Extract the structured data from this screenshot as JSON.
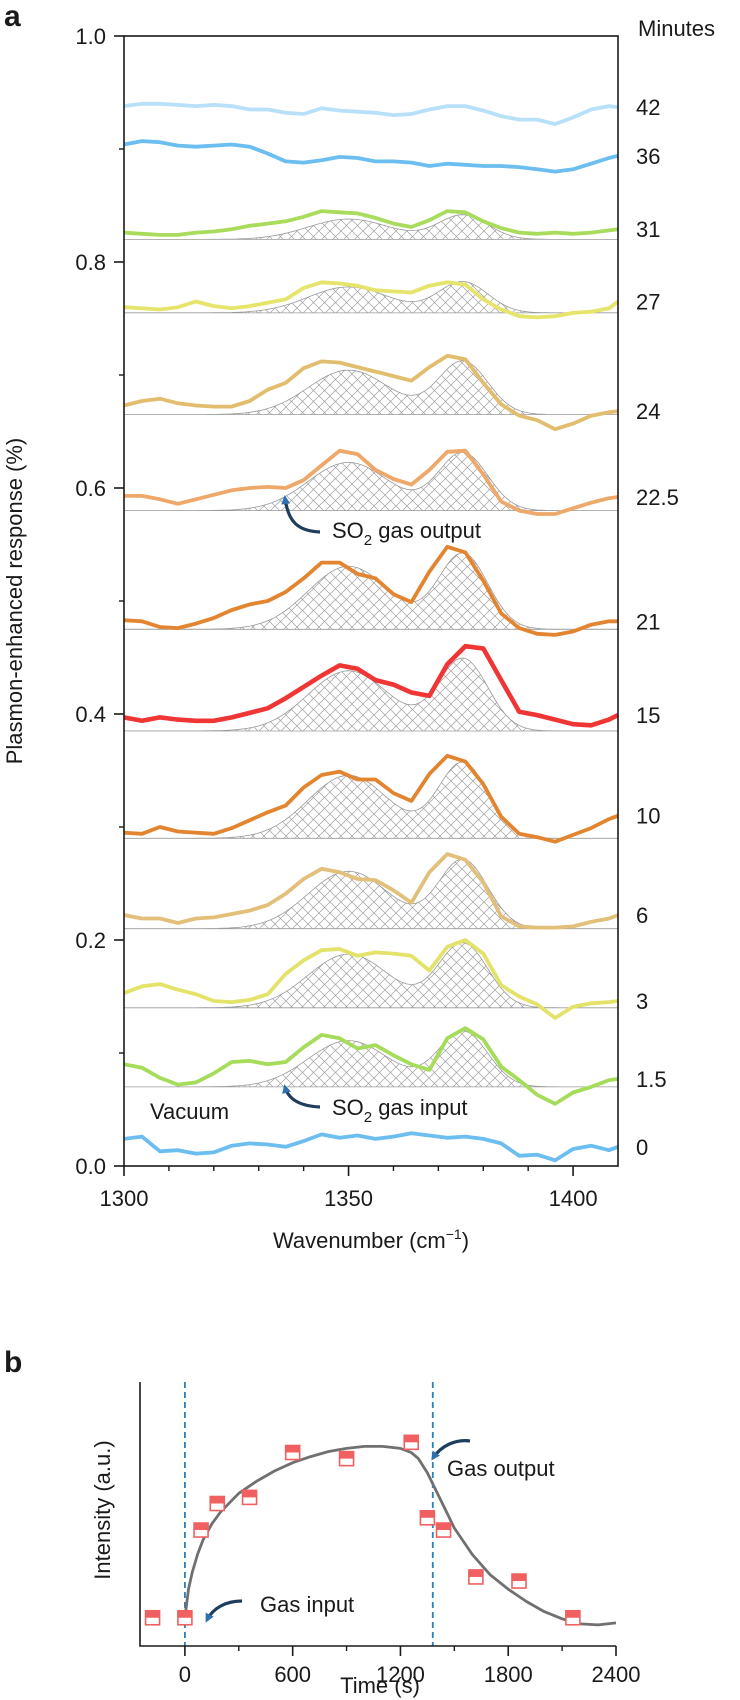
{
  "chart_data": [
    {
      "panel_label": "a",
      "type": "line",
      "xlabel_main": "Wavenumber (cm",
      "xlabel_sup": "−1",
      "xlabel_end": ")",
      "ylabel": "Plasmon-enhanced response (%)",
      "xlim": [
        1300,
        1410
      ],
      "ylim": [
        0.0,
        1.0
      ],
      "xticks": [
        1300,
        1350,
        1400
      ],
      "xtick_labels": [
        "1300",
        "1350",
        "1400"
      ],
      "xticks_minor": [
        1310,
        1320,
        1330,
        1340,
        1360,
        1370,
        1380,
        1390
      ],
      "yticks": [
        0.0,
        0.2,
        0.4,
        0.6,
        0.8,
        1.0
      ],
      "ytick_labels": [
        "0.0",
        "0.2",
        "0.4",
        "0.6",
        "0.8",
        "1.0"
      ],
      "minutes_header": "Minutes",
      "vacuum_label": "Vacuum",
      "annotations": [
        {
          "id": "input",
          "pre": "SO",
          "sub": "2",
          "post": " gas input",
          "arrow_to": [
            1337,
            0.088
          ]
        },
        {
          "id": "output",
          "pre": "SO",
          "sub": "2",
          "post": " gas output",
          "arrow_to": [
            1337,
            0.592
          ]
        }
      ],
      "x": [
        1300,
        1304,
        1308,
        1312,
        1316,
        1320,
        1324,
        1328,
        1332,
        1336,
        1340,
        1344,
        1348,
        1352,
        1356,
        1360,
        1364,
        1368,
        1372,
        1376,
        1380,
        1384,
        1388,
        1392,
        1396,
        1400,
        1404,
        1408,
        1410
      ],
      "series": [
        {
          "name": "0",
          "label": "0",
          "color": "#6cbdf0",
          "baseline": 0.02,
          "amp": 0.0,
          "has_peaks": false,
          "values": [
            0.024,
            0.026,
            0.013,
            0.014,
            0.011,
            0.012,
            0.018,
            0.02,
            0.019,
            0.017,
            0.022,
            0.028,
            0.025,
            0.027,
            0.024,
            0.026,
            0.029,
            0.027,
            0.025,
            0.026,
            0.024,
            0.02,
            0.009,
            0.01,
            0.005,
            0.015,
            0.018,
            0.014,
            0.017
          ]
        },
        {
          "name": "1.5",
          "label": "1.5",
          "color": "#a5dc5a",
          "baseline": 0.07,
          "amp": 0.05,
          "has_peaks": true,
          "values": [
            0.09,
            0.087,
            0.078,
            0.072,
            0.074,
            0.082,
            0.092,
            0.093,
            0.09,
            0.092,
            0.105,
            0.116,
            0.113,
            0.104,
            0.107,
            0.098,
            0.09,
            0.085,
            0.113,
            0.122,
            0.112,
            0.088,
            0.076,
            0.063,
            0.055,
            0.065,
            0.07,
            0.076,
            0.077
          ]
        },
        {
          "name": "3",
          "label": "3",
          "color": "#e3e36a",
          "baseline": 0.14,
          "amp": 0.058,
          "has_peaks": true,
          "values": [
            0.153,
            0.159,
            0.161,
            0.156,
            0.152,
            0.146,
            0.145,
            0.147,
            0.152,
            0.17,
            0.182,
            0.191,
            0.192,
            0.186,
            0.189,
            0.188,
            0.186,
            0.173,
            0.194,
            0.2,
            0.188,
            0.16,
            0.15,
            0.143,
            0.131,
            0.141,
            0.144,
            0.145,
            0.146
          ]
        },
        {
          "name": "6",
          "label": "6",
          "color": "#e2c07a",
          "baseline": 0.21,
          "amp": 0.062,
          "has_peaks": true,
          "values": [
            0.222,
            0.219,
            0.219,
            0.215,
            0.219,
            0.22,
            0.223,
            0.226,
            0.231,
            0.241,
            0.254,
            0.263,
            0.26,
            0.254,
            0.253,
            0.244,
            0.233,
            0.26,
            0.276,
            0.271,
            0.251,
            0.221,
            0.212,
            0.211,
            0.211,
            0.212,
            0.216,
            0.219,
            0.222
          ]
        },
        {
          "name": "10",
          "label": "10",
          "color": "#e38530",
          "baseline": 0.29,
          "amp": 0.068,
          "has_peaks": true,
          "values": [
            0.295,
            0.294,
            0.3,
            0.296,
            0.295,
            0.294,
            0.299,
            0.306,
            0.313,
            0.319,
            0.335,
            0.346,
            0.349,
            0.342,
            0.342,
            0.33,
            0.323,
            0.347,
            0.363,
            0.358,
            0.338,
            0.309,
            0.294,
            0.291,
            0.287,
            0.293,
            0.299,
            0.307,
            0.31
          ]
        },
        {
          "name": "15",
          "label": "15",
          "color": "#f03535",
          "baseline": 0.385,
          "amp": 0.065,
          "has_peaks": true,
          "values": [
            0.397,
            0.394,
            0.397,
            0.395,
            0.394,
            0.394,
            0.397,
            0.401,
            0.405,
            0.414,
            0.424,
            0.434,
            0.443,
            0.44,
            0.43,
            0.426,
            0.419,
            0.416,
            0.444,
            0.46,
            0.458,
            0.43,
            0.402,
            0.399,
            0.395,
            0.391,
            0.39,
            0.395,
            0.399
          ]
        },
        {
          "name": "21",
          "label": "21",
          "color": "#e38530",
          "baseline": 0.475,
          "amp": 0.068,
          "has_peaks": true,
          "values": [
            0.483,
            0.482,
            0.477,
            0.476,
            0.48,
            0.485,
            0.492,
            0.497,
            0.5,
            0.508,
            0.52,
            0.534,
            0.534,
            0.524,
            0.52,
            0.506,
            0.499,
            0.526,
            0.548,
            0.543,
            0.518,
            0.489,
            0.476,
            0.471,
            0.47,
            0.473,
            0.479,
            0.482,
            0.482
          ]
        },
        {
          "name": "22.5",
          "label": "22.5",
          "color": "#eea86a",
          "baseline": 0.58,
          "amp": 0.052,
          "has_peaks": true,
          "values": [
            0.593,
            0.593,
            0.59,
            0.586,
            0.59,
            0.594,
            0.598,
            0.6,
            0.601,
            0.6,
            0.607,
            0.62,
            0.633,
            0.63,
            0.616,
            0.608,
            0.603,
            0.616,
            0.632,
            0.633,
            0.612,
            0.588,
            0.58,
            0.577,
            0.577,
            0.582,
            0.587,
            0.591,
            0.592
          ]
        },
        {
          "name": "24",
          "label": "24",
          "color": "#e3bd6e",
          "baseline": 0.665,
          "amp": 0.048,
          "has_peaks": true,
          "values": [
            0.673,
            0.677,
            0.679,
            0.675,
            0.673,
            0.672,
            0.672,
            0.677,
            0.687,
            0.693,
            0.706,
            0.712,
            0.711,
            0.707,
            0.703,
            0.699,
            0.695,
            0.707,
            0.717,
            0.714,
            0.693,
            0.674,
            0.664,
            0.66,
            0.652,
            0.657,
            0.664,
            0.667,
            0.668
          ]
        },
        {
          "name": "27",
          "label": "27",
          "color": "#e6e46a",
          "baseline": 0.755,
          "amp": 0.028,
          "has_peaks": true,
          "values": [
            0.76,
            0.759,
            0.758,
            0.76,
            0.765,
            0.761,
            0.759,
            0.761,
            0.764,
            0.767,
            0.777,
            0.782,
            0.781,
            0.779,
            0.775,
            0.774,
            0.773,
            0.779,
            0.782,
            0.78,
            0.767,
            0.758,
            0.752,
            0.751,
            0.752,
            0.755,
            0.756,
            0.759,
            0.765
          ]
        },
        {
          "name": "31",
          "label": "31",
          "color": "#a9dc5c",
          "baseline": 0.82,
          "amp": 0.022,
          "has_peaks": true,
          "values": [
            0.826,
            0.825,
            0.824,
            0.824,
            0.826,
            0.827,
            0.829,
            0.832,
            0.834,
            0.836,
            0.84,
            0.845,
            0.844,
            0.843,
            0.839,
            0.834,
            0.831,
            0.837,
            0.845,
            0.844,
            0.836,
            0.83,
            0.826,
            0.825,
            0.826,
            0.825,
            0.826,
            0.828,
            0.829
          ]
        },
        {
          "name": "36",
          "label": "36",
          "color": "#6cbdf0",
          "baseline": 0.89,
          "amp": 0.0,
          "has_peaks": false,
          "values": [
            0.904,
            0.907,
            0.906,
            0.903,
            0.902,
            0.903,
            0.904,
            0.902,
            0.896,
            0.889,
            0.888,
            0.89,
            0.893,
            0.892,
            0.889,
            0.889,
            0.888,
            0.885,
            0.887,
            0.886,
            0.885,
            0.885,
            0.884,
            0.882,
            0.88,
            0.882,
            0.887,
            0.892,
            0.894
          ]
        },
        {
          "name": "42",
          "label": "42",
          "color": "#b8e0f8",
          "baseline": 0.93,
          "amp": 0.0,
          "has_peaks": false,
          "values": [
            0.938,
            0.94,
            0.94,
            0.939,
            0.938,
            0.939,
            0.938,
            0.935,
            0.935,
            0.932,
            0.931,
            0.936,
            0.934,
            0.933,
            0.932,
            0.93,
            0.931,
            0.935,
            0.938,
            0.938,
            0.934,
            0.929,
            0.926,
            0.926,
            0.922,
            0.928,
            0.935,
            0.938,
            0.937
          ]
        }
      ]
    },
    {
      "panel_label": "b",
      "type": "scatter",
      "xlabel": "Time (s)",
      "ylabel": "Intensity (a.u.)",
      "xlim": [
        -250,
        2400
      ],
      "ylim": [
        0,
        1
      ],
      "xticks": [
        0,
        600,
        1200,
        1800,
        2400
      ],
      "xtick_labels": [
        "0",
        "600",
        "1200",
        "1800",
        "2400"
      ],
      "markers": {
        "color": "#f06060"
      },
      "points": [
        {
          "x": -180,
          "y": 0.06
        },
        {
          "x": 0,
          "y": 0.06
        },
        {
          "x": 90,
          "y": 0.49
        },
        {
          "x": 180,
          "y": 0.62
        },
        {
          "x": 360,
          "y": 0.65
        },
        {
          "x": 600,
          "y": 0.87
        },
        {
          "x": 900,
          "y": 0.84
        },
        {
          "x": 1260,
          "y": 0.92
        },
        {
          "x": 1350,
          "y": 0.55
        },
        {
          "x": 1440,
          "y": 0.49
        },
        {
          "x": 1620,
          "y": 0.26
        },
        {
          "x": 1860,
          "y": 0.24
        },
        {
          "x": 2160,
          "y": 0.06
        }
      ],
      "fit_curve": {
        "color": "#707070",
        "x": [
          0,
          20,
          40,
          70,
          100,
          150,
          200,
          300,
          400,
          500,
          600,
          700,
          800,
          900,
          1000,
          1100,
          1200,
          1260,
          1300,
          1350,
          1400,
          1450,
          1500,
          1600,
          1700,
          1800,
          1900,
          2000,
          2100,
          2200,
          2300,
          2400
        ],
        "y": [
          0.06,
          0.2,
          0.28,
          0.37,
          0.44,
          0.52,
          0.58,
          0.67,
          0.73,
          0.78,
          0.82,
          0.85,
          0.875,
          0.89,
          0.9,
          0.9,
          0.89,
          0.87,
          0.84,
          0.77,
          0.68,
          0.59,
          0.5,
          0.37,
          0.27,
          0.2,
          0.14,
          0.09,
          0.055,
          0.03,
          0.025,
          0.035
        ]
      },
      "vlines": [
        {
          "x": 0
        },
        {
          "x": 1380
        }
      ],
      "vline_color": "#2a80c0",
      "annotations": [
        {
          "id": "gas-input",
          "text": "Gas input"
        },
        {
          "id": "gas-output",
          "text": "Gas output"
        }
      ]
    }
  ]
}
